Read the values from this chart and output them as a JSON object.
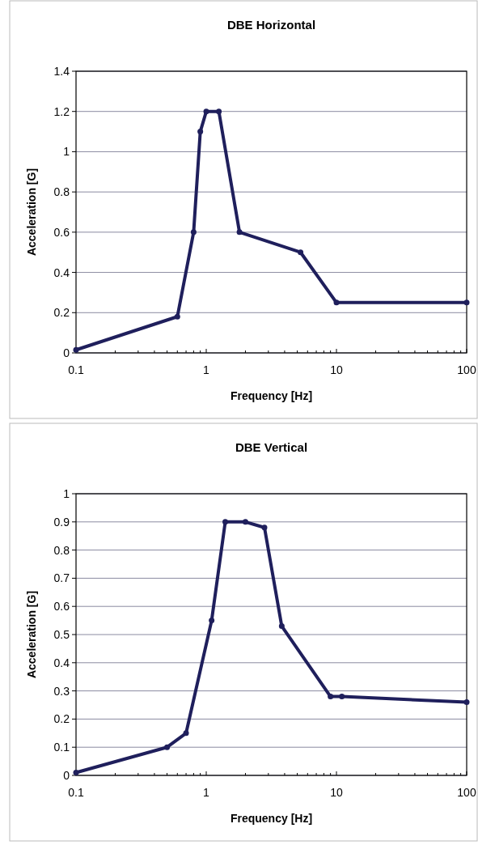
{
  "chart_data": [
    {
      "type": "line",
      "title": "DBE Horizontal",
      "xlabel": "Frequency [Hz]",
      "ylabel": "Acceleration [G]",
      "log": "x",
      "grid": "y",
      "marker": "circle",
      "line_style": "solid",
      "xlim": [
        0.1,
        100
      ],
      "ylim": [
        0,
        1.4
      ],
      "yticks": [
        0,
        0.2,
        0.4,
        0.6,
        0.8,
        1,
        1.2,
        1.4
      ],
      "xticks": [
        0.1,
        {
          "value": 0.2,
          "label": null
        },
        {
          "value": 0.3,
          "label": null
        },
        {
          "value": 0.4,
          "label": null
        },
        {
          "value": 0.5,
          "label": null
        },
        {
          "value": 0.6,
          "label": null
        },
        {
          "value": 0.7,
          "label": null
        },
        {
          "value": 0.8,
          "label": null
        },
        {
          "value": 0.9,
          "label": null
        },
        1,
        {
          "value": 2,
          "label": null
        },
        {
          "value": 3,
          "label": null
        },
        {
          "value": 4,
          "label": null
        },
        {
          "value": 5,
          "label": null
        },
        {
          "value": 6,
          "label": null
        },
        {
          "value": 7,
          "label": null
        },
        {
          "value": 8,
          "label": null
        },
        {
          "value": 9,
          "label": null
        },
        10,
        {
          "value": 20,
          "label": null
        },
        {
          "value": 30,
          "label": null
        },
        {
          "value": 40,
          "label": null
        },
        {
          "value": 50,
          "label": null
        },
        {
          "value": 60,
          "label": null
        },
        {
          "value": 70,
          "label": null
        },
        {
          "value": 80,
          "label": null
        },
        {
          "value": 90,
          "label": null
        },
        100
      ],
      "x": [
        0.1,
        0.6,
        0.8,
        0.9,
        1,
        1.25,
        1.8,
        5.3,
        10,
        100
      ],
      "series": [
        {
          "color": "#1f1f5c",
          "values": [
            0.015,
            0.18,
            0.6,
            1.1,
            1.2,
            1.2,
            0.6,
            0.5,
            0.25,
            0.25
          ]
        }
      ]
    },
    {
      "type": "line",
      "title": "DBE Vertical",
      "xlabel": "Frequency [Hz]",
      "ylabel": "Acceleration [G]",
      "log": "x",
      "grid": "y",
      "marker": "circle",
      "line_style": "solid",
      "xlim": [
        0.1,
        100
      ],
      "ylim": [
        0,
        1
      ],
      "yticks": [
        0,
        0.1,
        0.2,
        0.3,
        0.4,
        0.5,
        0.6,
        0.7,
        0.8,
        0.9,
        1
      ],
      "xticks": [
        0.1,
        {
          "value": 0.2,
          "label": null
        },
        {
          "value": 0.3,
          "label": null
        },
        {
          "value": 0.4,
          "label": null
        },
        {
          "value": 0.5,
          "label": null
        },
        {
          "value": 0.6,
          "label": null
        },
        {
          "value": 0.7,
          "label": null
        },
        {
          "value": 0.8,
          "label": null
        },
        {
          "value": 0.9,
          "label": null
        },
        1,
        {
          "value": 2,
          "label": null
        },
        {
          "value": 3,
          "label": null
        },
        {
          "value": 4,
          "label": null
        },
        {
          "value": 5,
          "label": null
        },
        {
          "value": 6,
          "label": null
        },
        {
          "value": 7,
          "label": null
        },
        {
          "value": 8,
          "label": null
        },
        {
          "value": 9,
          "label": null
        },
        10,
        {
          "value": 20,
          "label": null
        },
        {
          "value": 30,
          "label": null
        },
        {
          "value": 40,
          "label": null
        },
        {
          "value": 50,
          "label": null
        },
        {
          "value": 60,
          "label": null
        },
        {
          "value": 70,
          "label": null
        },
        {
          "value": 80,
          "label": null
        },
        {
          "value": 90,
          "label": null
        },
        100
      ],
      "x": [
        0.1,
        0.5,
        0.7,
        1.1,
        1.4,
        2,
        2.8,
        3.8,
        9,
        11,
        100
      ],
      "series": [
        {
          "color": "#1f1f5c",
          "values": [
            0.01,
            0.1,
            0.15,
            0.55,
            0.9,
            0.9,
            0.88,
            0.53,
            0.28,
            0.28,
            0.26
          ]
        }
      ]
    }
  ]
}
